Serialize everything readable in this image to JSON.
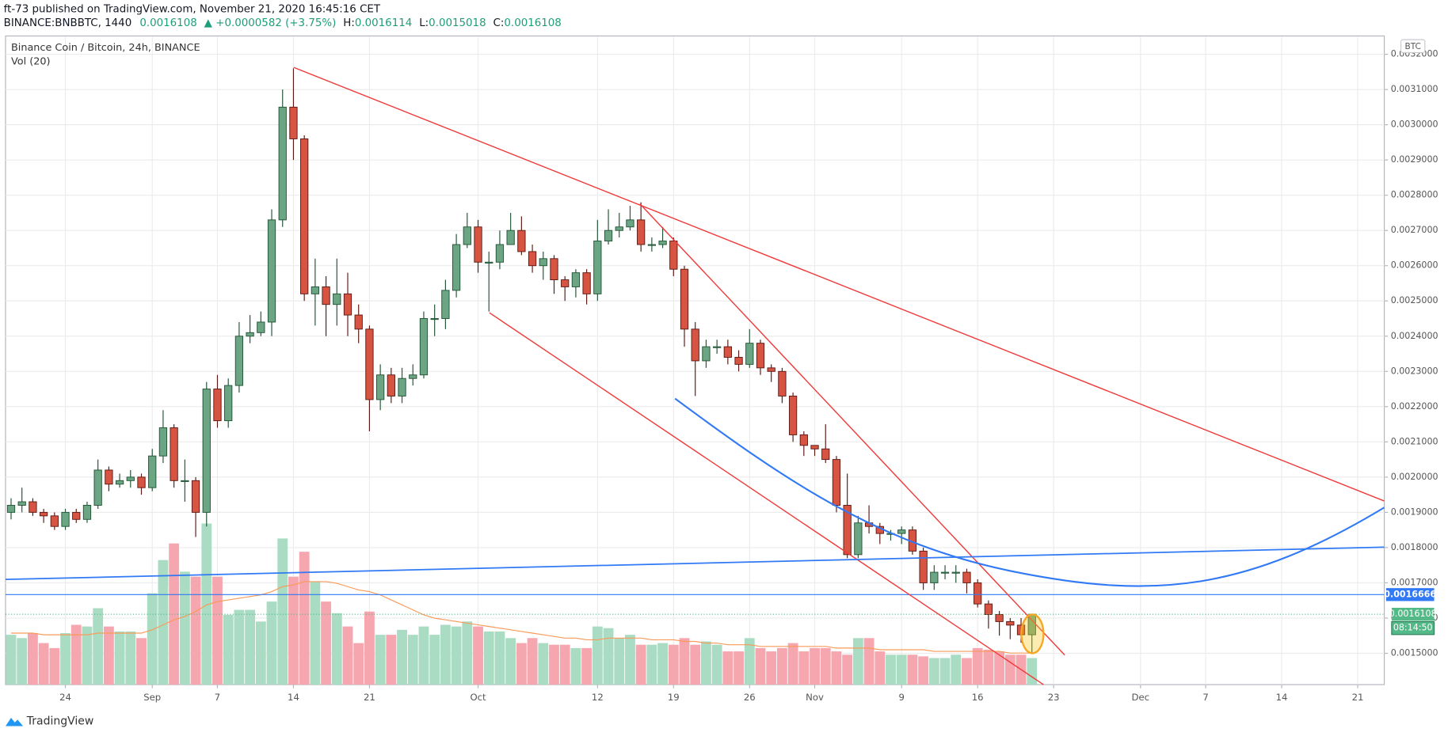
{
  "header": {
    "published": "ft-73 published on TradingView.com, November 21, 2020 16:45:16 CET",
    "symbol": "BINANCE:BNBBTC, 1440",
    "last": "0.0016108",
    "change": "▲ +0.0000582 (+3.75%)",
    "high_label": "H:",
    "high": "0.0016114",
    "low_label": "L:",
    "low": "0.0015018",
    "close_label": "C:",
    "close": "0.0016108"
  },
  "footer": {
    "brand": "TradingView"
  },
  "chart_data": {
    "type": "candlestick",
    "title": "Binance Coin / Bitcoin, 24h, BINANCE",
    "volume_label": "Vol (20)",
    "currency": "BTC",
    "x": [
      "2020-08-19",
      "2020-08-20",
      "2020-08-21",
      "2020-08-22",
      "2020-08-23",
      "2020-08-24",
      "2020-08-25",
      "2020-08-26",
      "2020-08-27",
      "2020-08-28",
      "2020-08-29",
      "2020-08-30",
      "2020-08-31",
      "2020-09-01",
      "2020-09-02",
      "2020-09-03",
      "2020-09-04",
      "2020-09-05",
      "2020-09-06",
      "2020-09-07",
      "2020-09-08",
      "2020-09-09",
      "2020-09-10",
      "2020-09-11",
      "2020-09-12",
      "2020-09-13",
      "2020-09-14",
      "2020-09-15",
      "2020-09-16",
      "2020-09-17",
      "2020-09-18",
      "2020-09-19",
      "2020-09-20",
      "2020-09-21",
      "2020-09-22",
      "2020-09-23",
      "2020-09-24",
      "2020-09-25",
      "2020-09-26",
      "2020-09-27",
      "2020-09-28",
      "2020-09-29",
      "2020-09-30",
      "2020-10-01",
      "2020-10-02",
      "2020-10-03",
      "2020-10-04",
      "2020-10-05",
      "2020-10-06",
      "2020-10-07",
      "2020-10-08",
      "2020-10-09",
      "2020-10-10",
      "2020-10-11",
      "2020-10-12",
      "2020-10-13",
      "2020-10-14",
      "2020-10-15",
      "2020-10-16",
      "2020-10-17",
      "2020-10-18",
      "2020-10-19",
      "2020-10-20",
      "2020-10-21",
      "2020-10-22",
      "2020-10-23",
      "2020-10-24",
      "2020-10-25",
      "2020-10-26",
      "2020-10-27",
      "2020-10-28",
      "2020-10-29",
      "2020-10-30",
      "2020-10-31",
      "2020-11-01",
      "2020-11-02",
      "2020-11-03",
      "2020-11-04",
      "2020-11-05",
      "2020-11-06",
      "2020-11-07",
      "2020-11-08",
      "2020-11-09",
      "2020-11-10",
      "2020-11-11",
      "2020-11-12",
      "2020-11-13",
      "2020-11-14",
      "2020-11-15",
      "2020-11-16",
      "2020-11-17",
      "2020-11-18",
      "2020-11-19",
      "2020-11-20",
      "2020-11-21"
    ],
    "open": [
      0.0019,
      0.00192,
      0.00193,
      0.0019,
      0.00189,
      0.00186,
      0.0019,
      0.00188,
      0.00192,
      0.00202,
      0.00198,
      0.00199,
      0.002,
      0.00197,
      0.00206,
      0.00214,
      0.00199,
      0.00199,
      0.0019,
      0.00225,
      0.00216,
      0.00226,
      0.0024,
      0.00241,
      0.00244,
      0.00273,
      0.00305,
      0.00296,
      0.00252,
      0.00254,
      0.00249,
      0.00252,
      0.00246,
      0.00242,
      0.00222,
      0.00229,
      0.00223,
      0.00228,
      0.00229,
      0.00245,
      0.00245,
      0.00253,
      0.00266,
      0.00271,
      0.00261,
      0.00261,
      0.00266,
      0.0027,
      0.00264,
      0.0026,
      0.00262,
      0.00256,
      0.00254,
      0.00258,
      0.00252,
      0.00267,
      0.0027,
      0.00271,
      0.00273,
      0.00266,
      0.00266,
      0.00267,
      0.00259,
      0.00242,
      0.00233,
      0.00237,
      0.00237,
      0.00234,
      0.00232,
      0.00238,
      0.00231,
      0.0023,
      0.00223,
      0.00212,
      0.00209,
      0.00208,
      0.00205,
      0.00192,
      0.00178,
      0.00187,
      0.00186,
      0.00184,
      0.00184,
      0.00185,
      0.00179,
      0.0017,
      0.00173,
      0.00173,
      0.00173,
      0.0017,
      0.00164,
      0.00161,
      0.00159,
      0.00158,
      0.0015526
    ],
    "high": [
      0.00194,
      0.00197,
      0.00194,
      0.00191,
      0.0019,
      0.00191,
      0.00191,
      0.00193,
      0.00205,
      0.00203,
      0.00201,
      0.00202,
      0.00201,
      0.00208,
      0.00219,
      0.00215,
      0.00205,
      0.002,
      0.00227,
      0.00229,
      0.00228,
      0.00244,
      0.00246,
      0.00247,
      0.00276,
      0.0031,
      0.00316,
      0.00297,
      0.00262,
      0.00257,
      0.00262,
      0.00258,
      0.00249,
      0.00243,
      0.00232,
      0.00231,
      0.00231,
      0.00232,
      0.00247,
      0.00249,
      0.00256,
      0.00269,
      0.00275,
      0.00273,
      0.00264,
      0.0027,
      0.00275,
      0.00274,
      0.00266,
      0.00264,
      0.00263,
      0.00257,
      0.00259,
      0.00259,
      0.00273,
      0.00276,
      0.00275,
      0.00277,
      0.00278,
      0.00268,
      0.00271,
      0.00268,
      0.0026,
      0.00244,
      0.00239,
      0.00239,
      0.00239,
      0.00236,
      0.00242,
      0.00239,
      0.00232,
      0.00231,
      0.00224,
      0.00213,
      0.00209,
      0.00215,
      0.00206,
      0.00201,
      0.00189,
      0.00192,
      0.00187,
      0.00185,
      0.00186,
      0.00186,
      0.0018,
      0.00175,
      0.00175,
      0.00175,
      0.00174,
      0.00171,
      0.00165,
      0.00162,
      0.0016,
      0.0016,
      0.0016114
    ],
    "low": [
      0.00188,
      0.0019,
      0.00189,
      0.00187,
      0.00185,
      0.00185,
      0.00187,
      0.00187,
      0.00191,
      0.00196,
      0.00197,
      0.00197,
      0.00195,
      0.00196,
      0.00204,
      0.00197,
      0.00193,
      0.00183,
      0.00186,
      0.00214,
      0.00214,
      0.00224,
      0.00238,
      0.0024,
      0.0024,
      0.00271,
      0.0029,
      0.0025,
      0.00243,
      0.0024,
      0.00243,
      0.0024,
      0.00238,
      0.00213,
      0.00219,
      0.00221,
      0.00221,
      0.00226,
      0.00228,
      0.0024,
      0.00242,
      0.00251,
      0.00265,
      0.00258,
      0.00247,
      0.00259,
      0.00266,
      0.00263,
      0.00258,
      0.00256,
      0.00252,
      0.0025,
      0.00251,
      0.00249,
      0.0025,
      0.00266,
      0.00268,
      0.0027,
      0.00264,
      0.00264,
      0.00265,
      0.00257,
      0.00237,
      0.00223,
      0.00231,
      0.00235,
      0.00232,
      0.0023,
      0.00231,
      0.00229,
      0.00227,
      0.00221,
      0.0021,
      0.00206,
      0.00206,
      0.00204,
      0.0019,
      0.00177,
      0.00177,
      0.00184,
      0.00181,
      0.00182,
      0.00181,
      0.00178,
      0.00168,
      0.00168,
      0.00171,
      0.0017,
      0.00167,
      0.00163,
      0.00157,
      0.00155,
      0.00154,
      0.00153,
      0.0015018
    ],
    "close": [
      0.00192,
      0.00193,
      0.0019,
      0.00189,
      0.00186,
      0.0019,
      0.00188,
      0.00192,
      0.00202,
      0.00198,
      0.00199,
      0.002,
      0.00197,
      0.00206,
      0.00214,
      0.00199,
      0.00199,
      0.0019,
      0.00225,
      0.00216,
      0.00226,
      0.0024,
      0.00241,
      0.00244,
      0.00273,
      0.00305,
      0.00296,
      0.00252,
      0.00254,
      0.00249,
      0.00252,
      0.00246,
      0.00242,
      0.00222,
      0.00229,
      0.00223,
      0.00228,
      0.00229,
      0.00245,
      0.00245,
      0.00253,
      0.00266,
      0.00271,
      0.00261,
      0.00261,
      0.00266,
      0.0027,
      0.00264,
      0.0026,
      0.00262,
      0.00256,
      0.00254,
      0.00258,
      0.00252,
      0.00267,
      0.0027,
      0.00271,
      0.00273,
      0.00266,
      0.00266,
      0.00267,
      0.00259,
      0.00242,
      0.00233,
      0.00237,
      0.00237,
      0.00234,
      0.00232,
      0.00238,
      0.00231,
      0.0023,
      0.00223,
      0.00212,
      0.00209,
      0.00208,
      0.00205,
      0.00192,
      0.00178,
      0.00187,
      0.00186,
      0.00184,
      0.00184,
      0.00185,
      0.00179,
      0.0017,
      0.00173,
      0.00173,
      0.00173,
      0.0017,
      0.00164,
      0.00161,
      0.00159,
      0.00158,
      0.0015526,
      0.0016108
    ],
    "volume": [
      30,
      28,
      31,
      25,
      22,
      31,
      36,
      35,
      46,
      35,
      32,
      32,
      28,
      55,
      75,
      85,
      68,
      65,
      97,
      65,
      42,
      45,
      45,
      38,
      50,
      88,
      65,
      80,
      62,
      50,
      43,
      35,
      25,
      44,
      30,
      30,
      33,
      30,
      35,
      30,
      36,
      35,
      38,
      35,
      32,
      32,
      28,
      25,
      28,
      25,
      24,
      24,
      22,
      22,
      35,
      34,
      28,
      30,
      24,
      24,
      25,
      24,
      28,
      24,
      26,
      24,
      20,
      20,
      28,
      22,
      20,
      22,
      25,
      20,
      22,
      22,
      20,
      18,
      28,
      28,
      20,
      18,
      18,
      18,
      17,
      16,
      16,
      18,
      16,
      22,
      21,
      20,
      18,
      18,
      16
    ],
    "volume_ma": [
      31,
      31,
      31,
      30,
      30,
      30,
      30,
      30,
      31,
      31,
      31,
      31,
      31,
      33,
      36,
      39,
      41,
      44,
      48,
      50,
      51,
      52,
      53,
      54,
      56,
      59,
      60,
      62,
      62,
      62,
      61,
      59,
      57,
      56,
      54,
      51,
      48,
      45,
      42,
      40,
      39,
      38,
      37,
      36,
      35,
      34,
      33,
      32,
      31,
      30,
      29,
      28,
      28,
      27,
      27,
      28,
      28,
      28,
      28,
      27,
      27,
      27,
      26,
      26,
      25,
      25,
      24,
      24,
      24,
      23,
      23,
      23,
      23,
      23,
      23,
      23,
      22,
      22,
      22,
      22,
      21,
      21,
      21,
      21,
      21,
      20,
      20,
      20,
      20,
      20,
      20,
      20,
      19,
      19,
      19
    ],
    "up_color": "#6ba583",
    "down_color": "#d75442",
    "up_volume_color": "#a9dcc3",
    "down_volume_color": "#f5a6ae",
    "volume_ma_color": "#f89b5a",
    "ylim": [
      0.0014111,
      0.0032493
    ],
    "yticks": [
      {
        "value": 0.0015,
        "label": "0.0015000"
      },
      {
        "value": 0.0016,
        "label": "0.0016000"
      },
      {
        "value": 0.0017,
        "label": "0.0017000"
      },
      {
        "value": 0.0018,
        "label": "0.0018000"
      },
      {
        "value": 0.0019,
        "label": "0.0019000"
      },
      {
        "value": 0.002,
        "label": "0.0020000"
      },
      {
        "value": 0.0021,
        "label": "0.0021000"
      },
      {
        "value": 0.0022,
        "label": "0.0022000"
      },
      {
        "value": 0.0023,
        "label": "0.0023000"
      },
      {
        "value": 0.0024,
        "label": "0.0024000"
      },
      {
        "value": 0.0025,
        "label": "0.0025000"
      },
      {
        "value": 0.0026,
        "label": "0.0026000"
      },
      {
        "value": 0.0027,
        "label": "0.0027000"
      },
      {
        "value": 0.0028,
        "label": "0.0028000"
      },
      {
        "value": 0.0029,
        "label": "0.0029000"
      },
      {
        "value": 0.003,
        "label": "0.0030000"
      },
      {
        "value": 0.0031,
        "label": "0.0031000"
      },
      {
        "value": 0.0032,
        "label": "0.0032000"
      }
    ],
    "xticks": [
      {
        "value": "2020-08-24",
        "label": "24"
      },
      {
        "value": "2020-09-01",
        "label": "Sep"
      },
      {
        "value": "2020-09-07",
        "label": "7"
      },
      {
        "value": "2020-09-14",
        "label": "14"
      },
      {
        "value": "2020-09-21",
        "label": "21"
      },
      {
        "value": "2020-10-01",
        "label": "Oct"
      },
      {
        "value": "2020-10-12",
        "label": "12"
      },
      {
        "value": "2020-10-19",
        "label": "19"
      },
      {
        "value": "2020-10-26",
        "label": "26"
      },
      {
        "value": "2020-11-01",
        "label": "Nov"
      },
      {
        "value": "2020-11-09",
        "label": "9"
      },
      {
        "value": "2020-11-16",
        "label": "16"
      },
      {
        "value": "2020-11-23",
        "label": "23"
      },
      {
        "value": "2020-12-01",
        "label": "Dec"
      },
      {
        "value": "2020-12-07",
        "label": "7"
      },
      {
        "value": "2020-12-14",
        "label": "14"
      },
      {
        "value": "2020-12-21",
        "label": "21"
      }
    ],
    "grid": true,
    "price_lines": [
      {
        "value": 0.0016666,
        "label": "0.0016666",
        "color": "#3179f5"
      }
    ],
    "last_price": {
      "value": 0.0016108,
      "label": "0.0016108",
      "countdown": "08:14:50",
      "color": "#53b987"
    }
  }
}
